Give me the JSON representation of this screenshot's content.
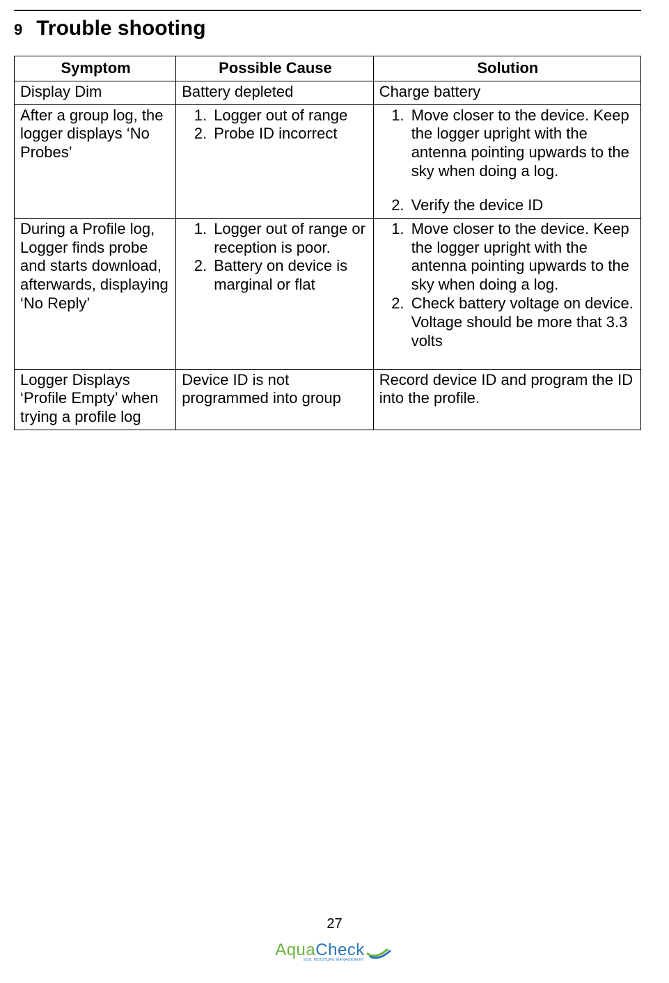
{
  "heading": {
    "number": "9",
    "title": "Trouble shooting"
  },
  "table": {
    "headers": {
      "c1": "Symptom",
      "c2": "Possible Cause",
      "c3": "Solution"
    },
    "rows": [
      {
        "symptom": "Display  Dim",
        "cause_plain": "Battery depleted",
        "solution_plain": "Charge battery"
      },
      {
        "symptom": "After a group log, the logger displays ‘No Probes’",
        "cause_list": [
          "Logger out of range",
          "Probe ID incorrect"
        ],
        "solution_list": [
          "Move closer to the device. Keep the logger upright with the antenna pointing upwards to the sky when doing a log.",
          "Verify the device ID"
        ],
        "solution_spaced": true
      },
      {
        "symptom": "During a Profile log, Logger finds probe and starts download, afterwards, displaying ‘No Reply’",
        "cause_list": [
          "Logger out of range or reception is poor.",
          "Battery on device is marginal or flat"
        ],
        "solution_list": [
          "Move closer to the device. Keep the logger upright with the antenna pointing upwards to the sky when doing a log.",
          "Check battery voltage on device. Voltage should be more that 3.3 volts"
        ],
        "trailing_gap": true
      },
      {
        "symptom": "Logger Displays ‘Profile Empty’ when trying a profile log",
        "cause_plain": "Device ID is not programmed into group",
        "solution_plain": "Record device ID and program the ID into the profile."
      }
    ]
  },
  "footer": {
    "page_number": "27",
    "logo_part1": "Aqua",
    "logo_part2": "Check",
    "logo_sub": "SOIL MOISTURE MANAGEMENT"
  }
}
